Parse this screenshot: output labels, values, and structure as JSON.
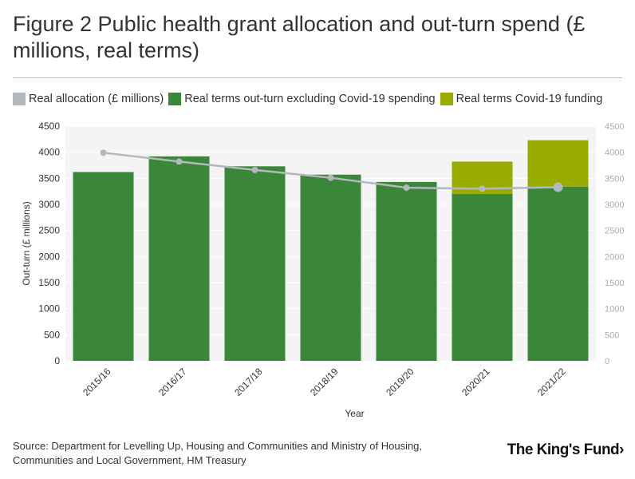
{
  "header": {
    "title": "Figure 2 Public health grant allocation and out-turn spend (£ millions, real terms)"
  },
  "legend": [
    {
      "label": "Real allocation (£ millions)",
      "color": "#b3b8bc"
    },
    {
      "label": "Real terms out-turn excluding Covid-19 spending",
      "color": "#3a873a"
    },
    {
      "label": "Real terms Covid-19 funding",
      "color": "#9aab00"
    }
  ],
  "chart_data": {
    "type": "bar",
    "stacked": true,
    "categories": [
      "2015/16",
      "2016/17",
      "2017/18",
      "2018/19",
      "2019/20",
      "2020/21",
      "2021/22"
    ],
    "series": [
      {
        "name": "Real terms out-turn excluding Covid-19 spending",
        "type": "bar",
        "color": "#3a873a",
        "values": [
          3620,
          3920,
          3730,
          3570,
          3430,
          3200,
          3340
        ]
      },
      {
        "name": "Real terms Covid-19 funding",
        "type": "bar",
        "color": "#9aab00",
        "values": [
          0,
          0,
          0,
          0,
          0,
          620,
          890
        ]
      },
      {
        "name": "Real allocation (£ millions)",
        "type": "line",
        "color": "#b3b8bc",
        "axis": "right",
        "values": [
          3990,
          3820,
          3660,
          3510,
          3320,
          3300,
          3330
        ]
      }
    ],
    "xlabel": "Year",
    "ylabel": "Out-turn (£ millions)",
    "ylim": [
      0,
      4500
    ],
    "yticks": [
      0,
      500,
      1000,
      1500,
      2000,
      2500,
      3000,
      3500,
      4000,
      4500
    ],
    "y2lim": [
      0,
      4500
    ],
    "y2ticks": [
      0,
      500,
      1000,
      1500,
      2000,
      2500,
      3000,
      3500,
      4000,
      4500
    ],
    "y2ticklabels": [
      "0",
      "500",
      "1000",
      "1500",
      "2000",
      "2500",
      "3000",
      "3500",
      "4000",
      "4500"
    ],
    "grid": true
  },
  "footer": {
    "source": "Source: Department for Levelling Up, Housing and Communities and Ministry of Housing, Communities and Local Government, HM Treasury",
    "logo_text": "The King's Fund",
    "logo_arrow": "›"
  }
}
